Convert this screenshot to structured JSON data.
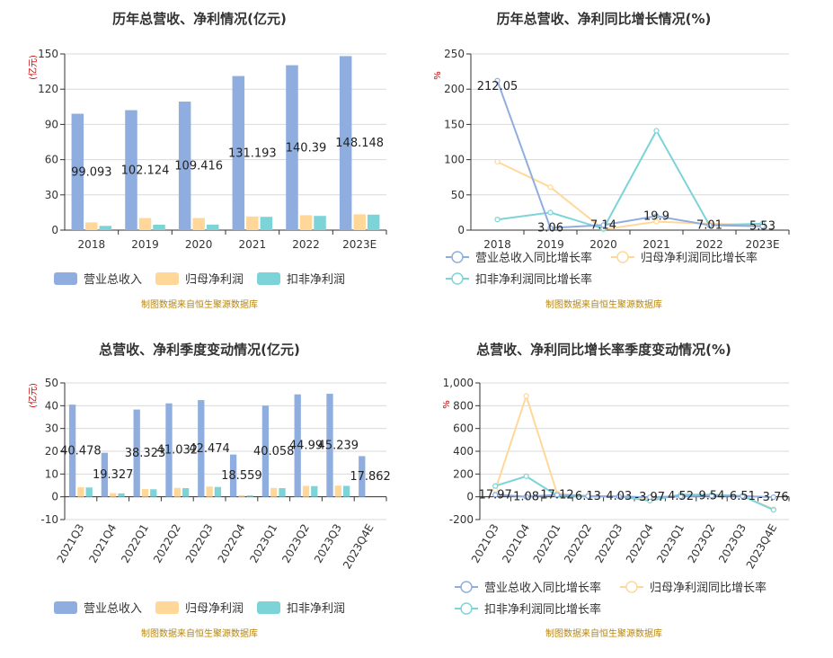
{
  "colors": {
    "revenue": "#8faedf",
    "net_profit": "#ffd899",
    "deducted_profit": "#7dd4d8",
    "source": "#b8860b",
    "unit": "#cc0000"
  },
  "chart_data": [
    {
      "type": "bar",
      "title": "历年总营收、净利情况(亿元)",
      "unit": "(亿元)",
      "categories": [
        "2018",
        "2019",
        "2020",
        "2021",
        "2022",
        "2023E"
      ],
      "ylim": [
        0,
        150
      ],
      "yticks": [
        "0",
        "30",
        "60",
        "90",
        "120",
        "150"
      ],
      "series": [
        {
          "name": "营业总收入",
          "values": [
            99.093,
            102.124,
            109.416,
            131.193,
            140.39,
            148.148
          ]
        },
        {
          "name": "归母净利润",
          "values": [
            6.6,
            10.3,
            10.3,
            11.6,
            12.7,
            13.5
          ]
        },
        {
          "name": "扣非净利润",
          "values": [
            3.6,
            4.6,
            4.7,
            11.3,
            12.1,
            13.2
          ]
        }
      ],
      "labels": [
        "99.093",
        "102.124",
        "109.416",
        "131.193",
        "140.39",
        "148.148"
      ],
      "source": "制图数据来自恒生聚源数据库"
    },
    {
      "type": "line",
      "title": "历年总营收、净利同比增长情况(%)",
      "unit": "%",
      "categories": [
        "2018",
        "2019",
        "2020",
        "2021",
        "2022",
        "2023E"
      ],
      "ylim": [
        0,
        250
      ],
      "yticks": [
        "0",
        "50",
        "100",
        "150",
        "200",
        "250"
      ],
      "series": [
        {
          "name": "营业总收入同比增长率",
          "values": [
            212.05,
            3.06,
            7.14,
            19.9,
            7.01,
            5.53
          ]
        },
        {
          "name": "归母净利润同比增长率",
          "values": [
            97,
            61,
            1,
            12,
            9,
            7
          ]
        },
        {
          "name": "扣非净利润同比增长率",
          "values": [
            15,
            25,
            2,
            141,
            7,
            9
          ]
        }
      ],
      "labels": [
        "212.05",
        "3.06",
        "7.14",
        "19.9",
        "7.01",
        "5.53"
      ],
      "source": "制图数据来自恒生聚源数据库"
    },
    {
      "type": "bar",
      "title": "总营收、净利季度变动情况(亿元)",
      "unit": "(亿元)",
      "categories": [
        "2021Q3",
        "2021Q4",
        "2022Q1",
        "2022Q2",
        "2022Q3",
        "2022Q4",
        "2023Q1",
        "2023Q2",
        "2023Q3",
        "2023Q4E"
      ],
      "ylim": [
        -10,
        50
      ],
      "yticks": [
        "-10",
        "0",
        "10",
        "20",
        "30",
        "40",
        "50"
      ],
      "series": [
        {
          "name": "营业总收入",
          "values": [
            40.478,
            19.327,
            38.323,
            41.032,
            42.474,
            18.559,
            40.058,
            44.99,
            45.239,
            17.862
          ]
        },
        {
          "name": "归母净利润",
          "values": [
            4.2,
            1.6,
            3.4,
            3.9,
            4.5,
            0.7,
            3.9,
            4.8,
            4.9,
            0
          ]
        },
        {
          "name": "扣非净利润",
          "values": [
            4.1,
            1.5,
            3.3,
            3.8,
            4.3,
            0.6,
            3.8,
            4.7,
            4.8,
            0
          ]
        }
      ],
      "labels": [
        "40.478",
        "19.327",
        "38.323",
        "41.032",
        "42.474",
        "18.559",
        "40.058",
        "44.99",
        "45.239",
        "17.862"
      ],
      "source": "制图数据来自恒生聚源数据库"
    },
    {
      "type": "line",
      "title": "总营收、净利同比增长率季度变动情况(%)",
      "unit": "%",
      "categories": [
        "2021Q3",
        "2021Q4",
        "2022Q1",
        "2022Q2",
        "2022Q3",
        "2022Q4",
        "2023Q1",
        "2023Q2",
        "2023Q3",
        "2023Q4E"
      ],
      "ylim": [
        -200,
        1000
      ],
      "yticks": [
        "-200",
        "0",
        "200",
        "400",
        "600",
        "800",
        "1,000"
      ],
      "series": [
        {
          "name": "营业总收入同比增长率",
          "values": [
            17.97,
            1.08,
            17.12,
            6.13,
            4.03,
            -3.97,
            4.52,
            9.54,
            6.51,
            -3.76
          ]
        },
        {
          "name": "归母净利润同比增长率",
          "values": [
            60,
            885,
            30,
            5,
            3,
            -10,
            10,
            15,
            8,
            -110
          ]
        },
        {
          "name": "扣非净利润同比增长率",
          "values": [
            95,
            180,
            10,
            4,
            2,
            -35,
            20,
            18,
            6,
            -115
          ]
        }
      ],
      "labels": [
        "17.97",
        "1.08",
        "17.12",
        "6.13",
        "4.03",
        "-3.97",
        "4.52",
        "9.54",
        "6.51",
        "-3.76"
      ],
      "source": "制图数据来自恒生聚源数据库"
    }
  ]
}
